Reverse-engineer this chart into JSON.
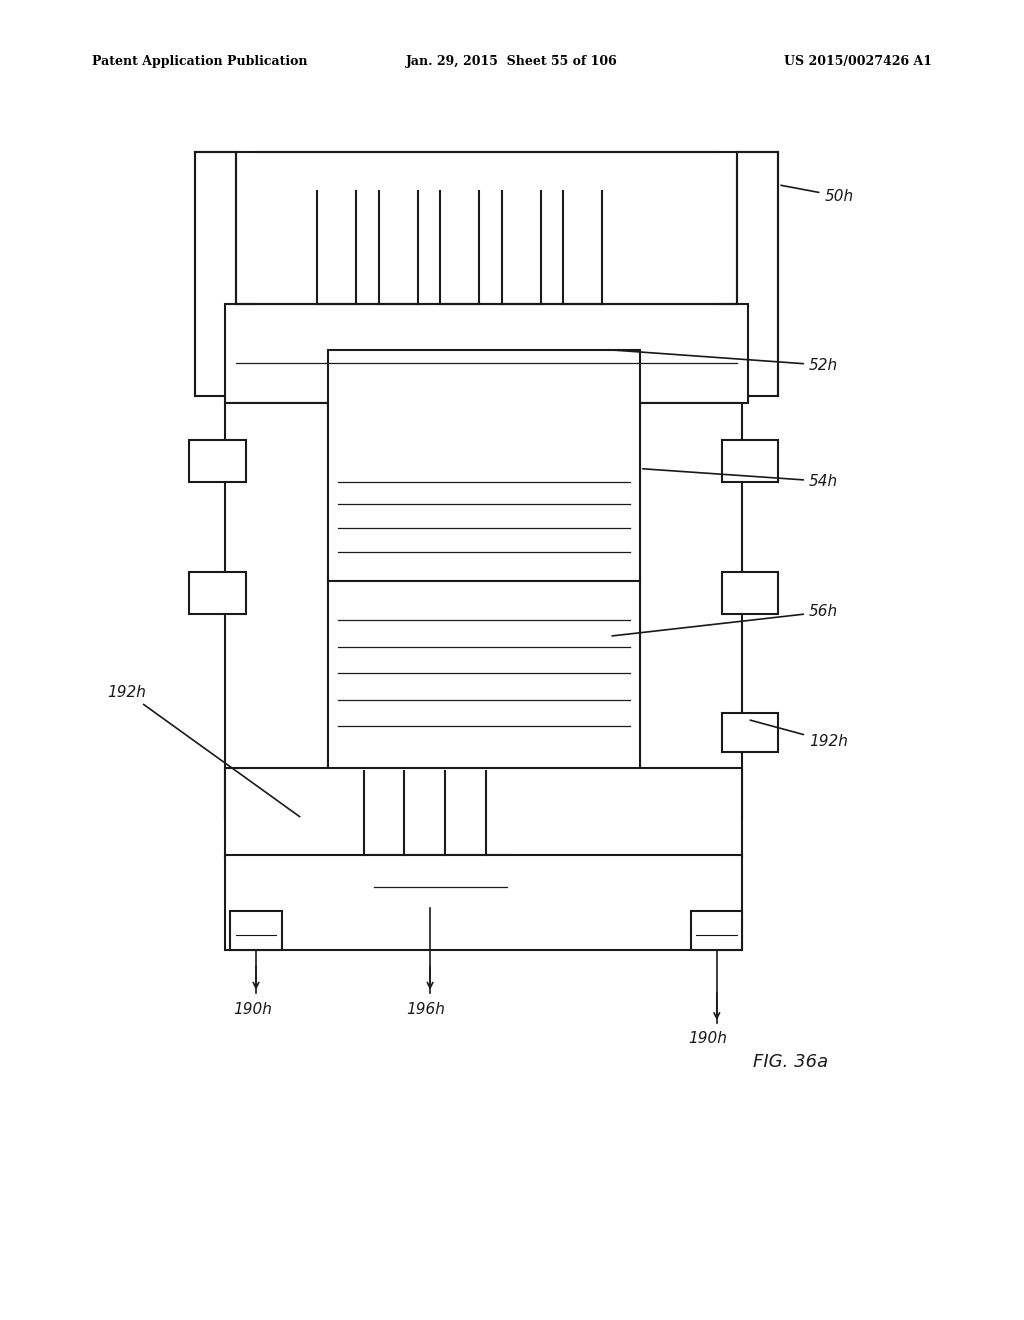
{
  "bg_color": "#ffffff",
  "line_color": "#1a1a1a",
  "header_left": "Patent Application Publication",
  "header_center": "Jan. 29, 2015  Sheet 55 of 106",
  "header_right": "US 2015/0027426 A1",
  "fig_label": "FIG. 36a"
}
